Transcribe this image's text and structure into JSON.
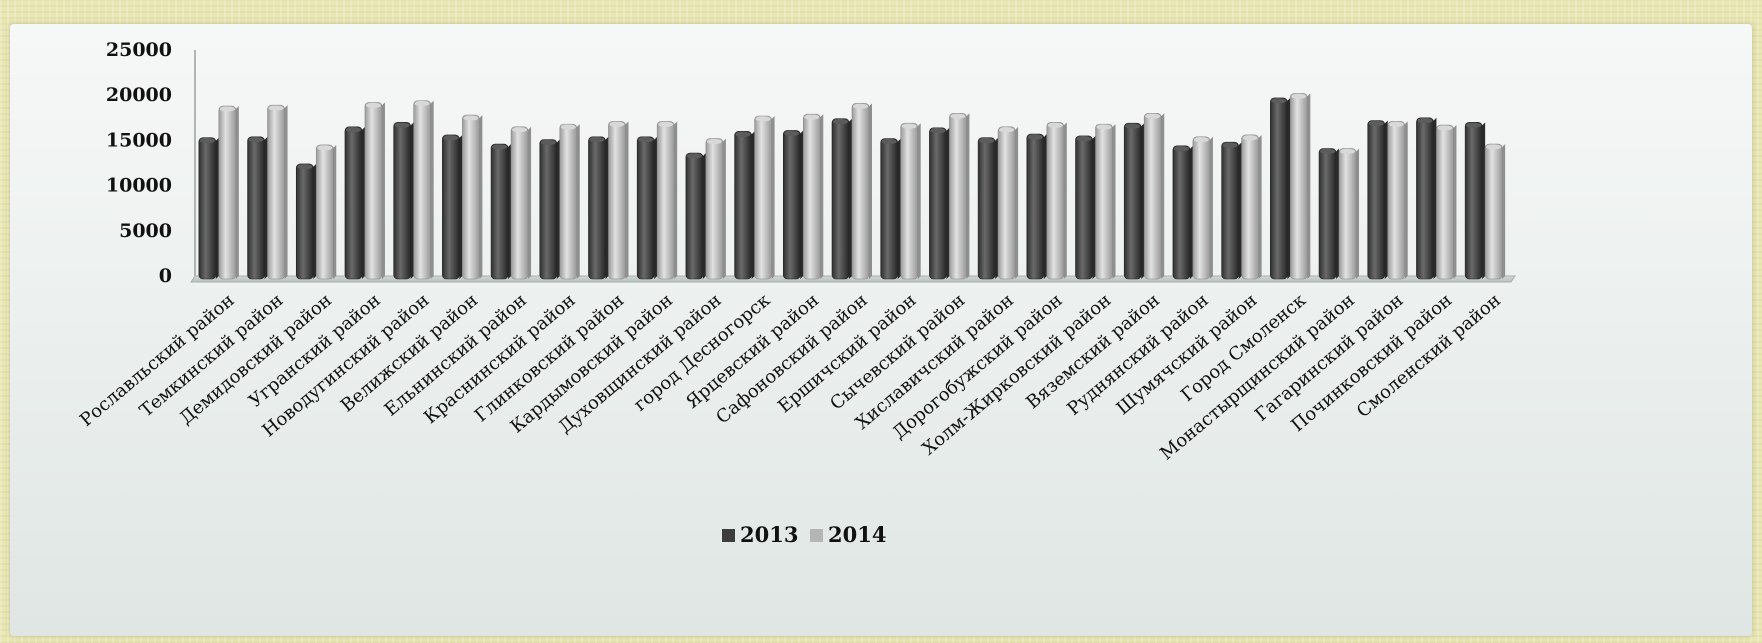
{
  "chart_data": {
    "type": "bar",
    "title": "",
    "xlabel": "",
    "ylabel": "",
    "ylim": [
      0,
      25000
    ],
    "yticks": [
      0,
      5000,
      10000,
      15000,
      20000,
      25000
    ],
    "grid": false,
    "legend_position": "bottom",
    "categories": [
      "Рославльский район",
      "Темкинский район",
      "Демидовский район",
      "Угранский район",
      "Новодугинский район",
      "Велижский район",
      "Ельнинский район",
      "Краснинский район",
      "Глинковский район",
      "Кардымовский район",
      "Духовщинский район",
      "город Десногорск",
      "Ярцевский район",
      "Сафоновский район",
      "Ершичский район",
      "Сычевский район",
      "Хиславичский район",
      "Дорогобужский район",
      "Холм-Жирковский район",
      "Вяземский район",
      "Руднянский район",
      "Шумячский район",
      "Город Смоленск",
      "Монастырщинский район",
      "Гагаринский район",
      "Починковский район",
      "Смоленский район"
    ],
    "series": [
      {
        "name": "2013",
        "color": "#4a4a4a",
        "values": [
          15300,
          15400,
          12400,
          16500,
          17000,
          15600,
          14600,
          15100,
          15400,
          15400,
          13600,
          16000,
          16100,
          17400,
          15200,
          16400,
          15300,
          15700,
          15500,
          16900,
          14400,
          14800,
          19700,
          14100,
          17200,
          17500,
          17000
        ]
      },
      {
        "name": "2014",
        "color": "#b9b9b9",
        "values": [
          18800,
          18900,
          14500,
          19200,
          19400,
          17800,
          16500,
          16800,
          17100,
          17100,
          15200,
          17700,
          17900,
          19100,
          16900,
          18000,
          16500,
          17000,
          16800,
          18000,
          15400,
          15600,
          20200,
          14100,
          17100,
          16700,
          14600
        ]
      }
    ]
  }
}
